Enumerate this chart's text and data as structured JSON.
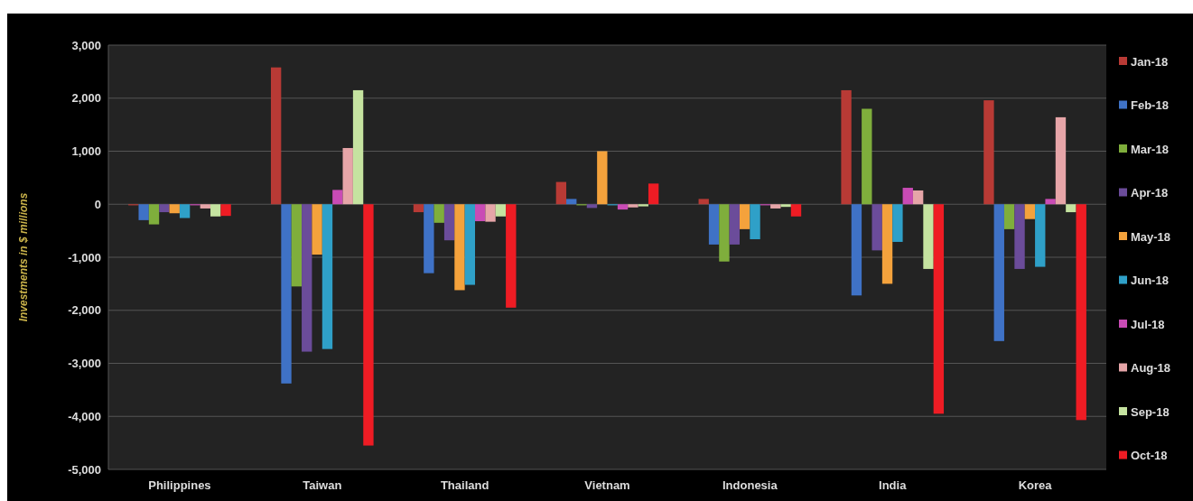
{
  "chart_data": {
    "type": "bar",
    "ylabel": "Investments in $ millions",
    "categories": [
      "Philippines",
      "Taiwan",
      "Thailand",
      "Vietnam",
      "Indonesia",
      "India",
      "Korea"
    ],
    "series": [
      {
        "name": "Jan-18",
        "color": "#b83a35",
        "values": [
          -20,
          2580,
          -150,
          420,
          100,
          2150,
          1960
        ]
      },
      {
        "name": "Feb-18",
        "color": "#3f72c6",
        "values": [
          -300,
          -3380,
          -1300,
          100,
          -760,
          -1720,
          -2580
        ]
      },
      {
        "name": "Mar-18",
        "color": "#7fae3c",
        "values": [
          -380,
          -1550,
          -350,
          -20,
          -1080,
          1800,
          -470
        ]
      },
      {
        "name": "Apr-18",
        "color": "#6b4c9a",
        "values": [
          -150,
          -2780,
          -680,
          -70,
          -760,
          -870,
          -1220
        ]
      },
      {
        "name": "May-18",
        "color": "#f4a23c",
        "values": [
          -170,
          -950,
          -1620,
          1000,
          -470,
          -1500,
          -280
        ]
      },
      {
        "name": "Jun-18",
        "color": "#2fa0c8",
        "values": [
          -260,
          -2730,
          -1520,
          -20,
          -660,
          -710,
          -1180
        ]
      },
      {
        "name": "Jul-18",
        "color": "#c94bb5",
        "values": [
          -20,
          270,
          -320,
          -100,
          -20,
          310,
          100
        ]
      },
      {
        "name": "Aug-18",
        "color": "#e6a5a8",
        "values": [
          -80,
          1060,
          -330,
          -60,
          -80,
          260,
          1640
        ]
      },
      {
        "name": "Sep-18",
        "color": "#c5e3a0",
        "values": [
          -230,
          2150,
          -230,
          -40,
          -50,
          -1220,
          -150
        ]
      },
      {
        "name": "Oct-18",
        "color": "#ee1c24",
        "values": [
          -220,
          -4550,
          -1950,
          390,
          -230,
          -3950,
          -4070
        ]
      }
    ],
    "ylim": [
      -5000,
      3000
    ],
    "yticks": [
      {
        "value": -5000,
        "label": "-5,000"
      },
      {
        "value": -4000,
        "label": "-4,000"
      },
      {
        "value": -3000,
        "label": "-3,000"
      },
      {
        "value": -2000,
        "label": "-2,000"
      },
      {
        "value": -1000,
        "label": "-1,000"
      },
      0,
      {
        "value": 1000,
        "label": "1,000"
      },
      {
        "value": 2000,
        "label": "2,000"
      },
      {
        "value": 3000,
        "label": "3,000"
      }
    ],
    "grid": "y",
    "legend": "right"
  }
}
